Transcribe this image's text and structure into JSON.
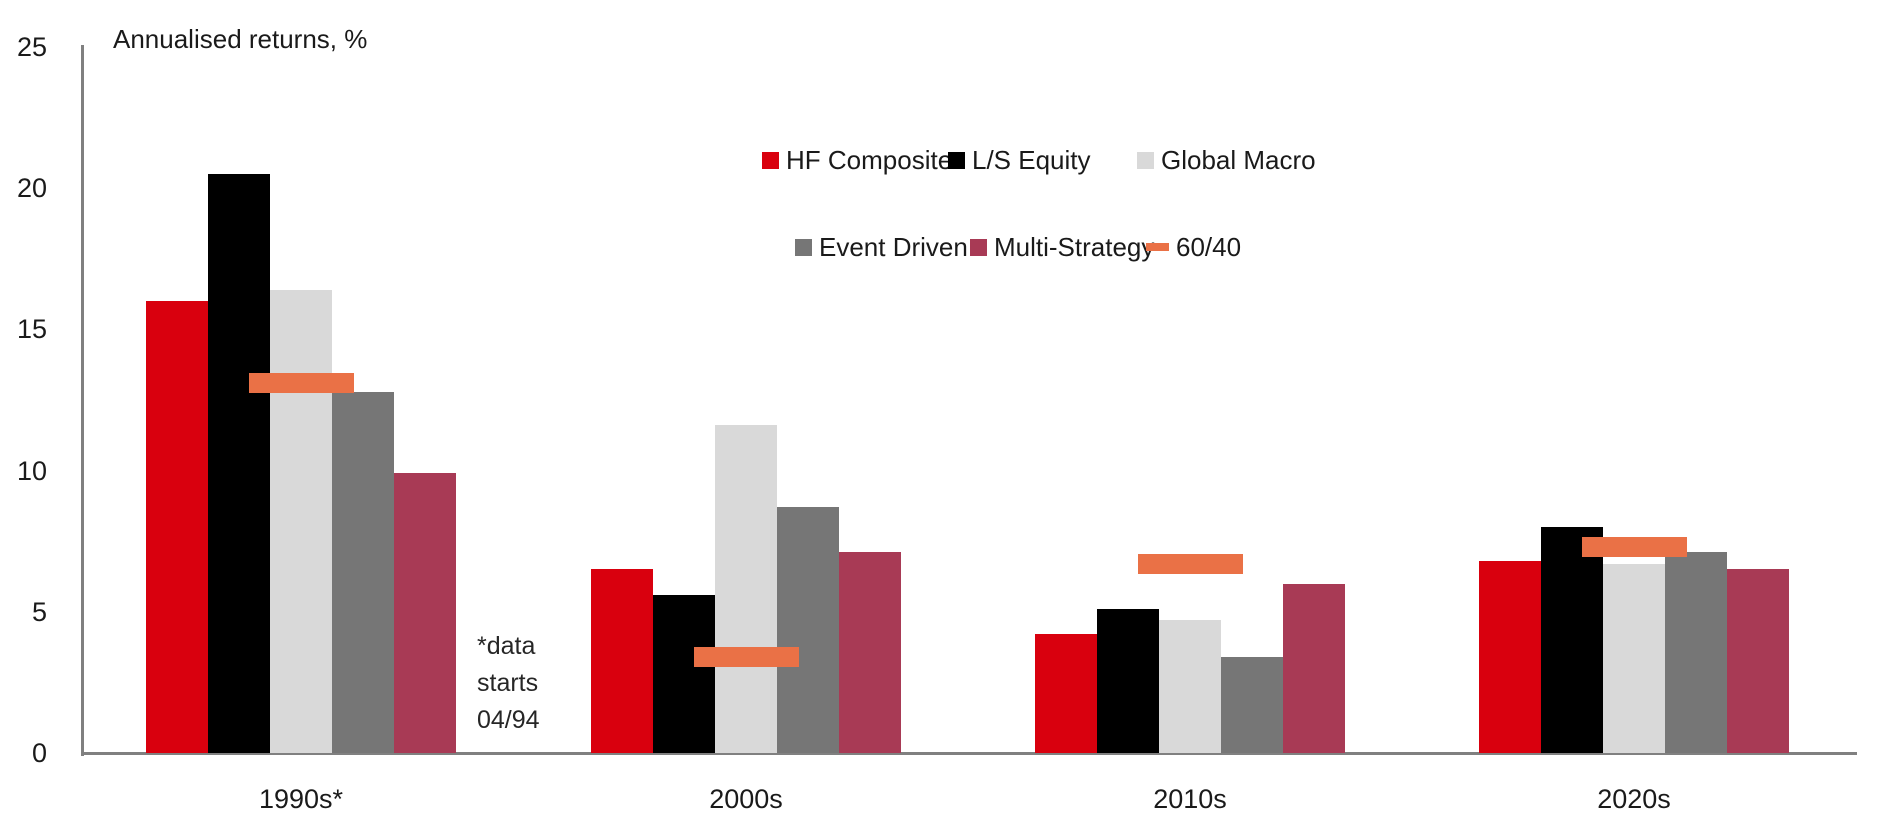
{
  "chart_data": {
    "type": "bar",
    "title": "Annualised returns, %",
    "categories": [
      "1990s*",
      "2000s",
      "2010s",
      "2020s"
    ],
    "series": [
      {
        "name": "HF Composite",
        "marker": "bar",
        "color": "#D9000E",
        "values": [
          16.0,
          6.5,
          4.2,
          6.8
        ]
      },
      {
        "name": "L/S Equity",
        "marker": "bar",
        "color": "#000000",
        "values": [
          20.5,
          5.6,
          5.1,
          8.0
        ]
      },
      {
        "name": "Global Macro",
        "marker": "bar",
        "color": "#D9D9D9",
        "values": [
          16.4,
          11.6,
          4.7,
          6.7
        ]
      },
      {
        "name": "Event Driven",
        "marker": "bar",
        "color": "#767676",
        "values": [
          12.8,
          8.7,
          3.4,
          7.1
        ]
      },
      {
        "name": "Multi-Strategy",
        "marker": "bar",
        "color": "#A83A55",
        "values": [
          9.9,
          7.1,
          6.0,
          6.5
        ]
      },
      {
        "name": "60/40",
        "marker": "dash",
        "color": "#EA7146",
        "values": [
          13.1,
          3.4,
          6.7,
          7.3
        ]
      }
    ],
    "y_ticks": [
      25,
      20,
      15,
      10,
      5,
      0
    ],
    "ylim": [
      0,
      25
    ],
    "ylabel": "Annualised returns, %",
    "grid": false,
    "legend_position": "top-center",
    "annotation": "*data\nstarts\n04/94"
  }
}
